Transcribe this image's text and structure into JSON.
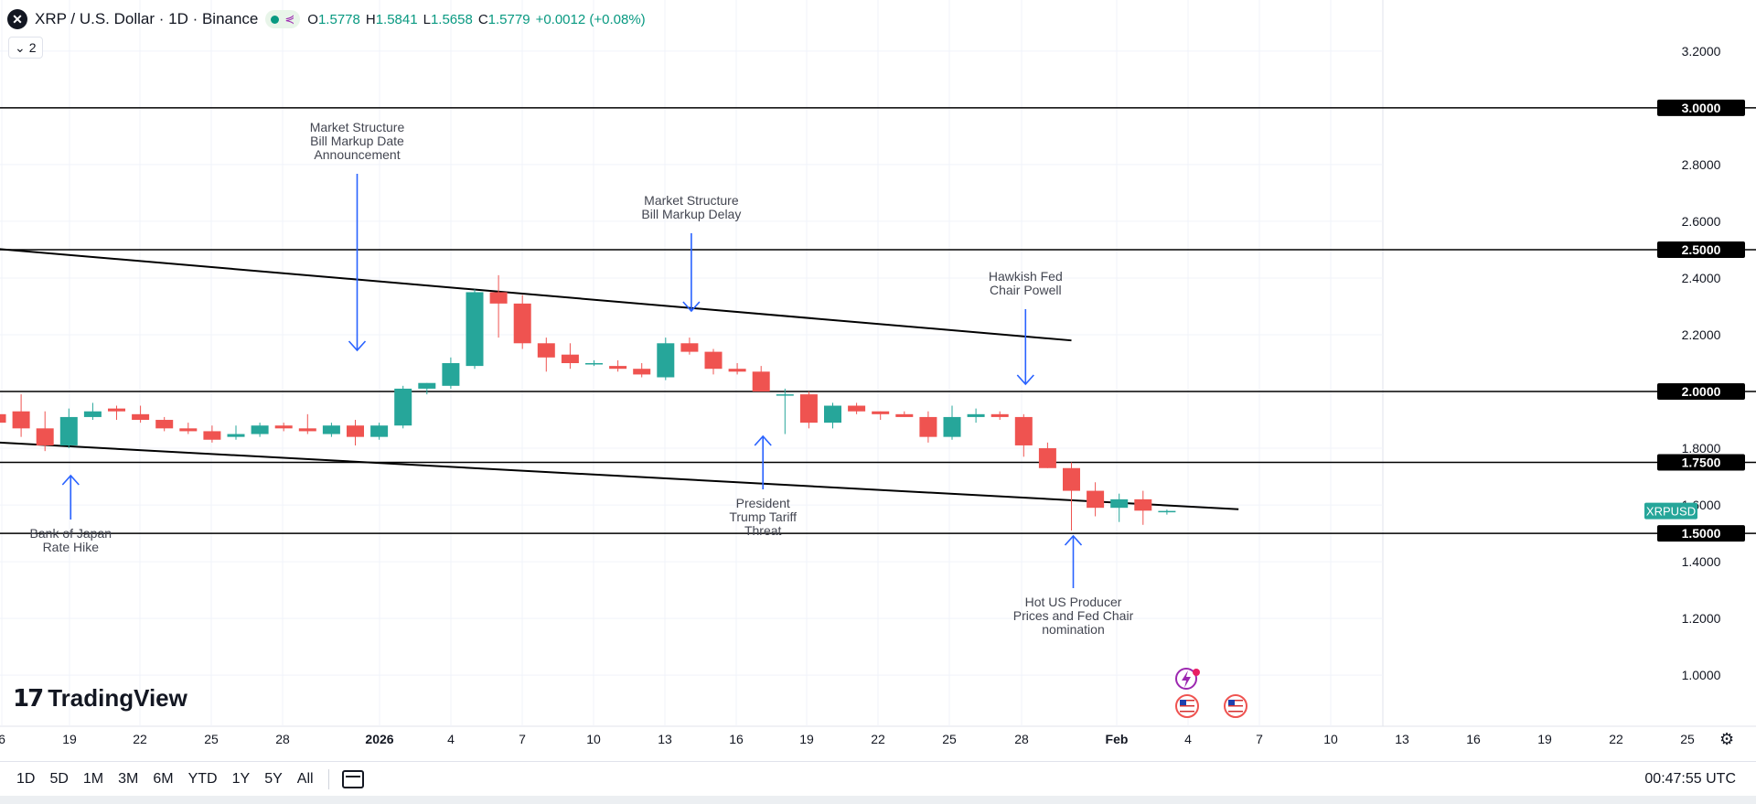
{
  "header": {
    "symbol_icon": "x-close-icon",
    "title": "XRP / U.S. Dollar · 1D · Binance",
    "ohlc": {
      "o_label": "O",
      "o": "1.5778",
      "h_label": "H",
      "h": "1.5841",
      "l_label": "L",
      "l": "1.5658",
      "c_label": "C",
      "c": "1.5779",
      "change": "+0.0012 (+0.08%)"
    },
    "indicator_toggle": "2"
  },
  "logo": {
    "text": "TradingView",
    "mark": "TV"
  },
  "bottom_bar": {
    "timeframes": [
      "1D",
      "5D",
      "1M",
      "3M",
      "6M",
      "YTD",
      "1Y",
      "5Y",
      "All"
    ],
    "clock": "00:47:55 UTC"
  },
  "colors": {
    "up": "#26a69a",
    "down": "#ef5350",
    "line": "#000000",
    "arrow": "#2962ff",
    "label_bg": "#000000",
    "price_tag": "#26a69a"
  },
  "chart_data": {
    "type": "candlestick",
    "symbol": "XRPUSD",
    "x_axis_labels": [
      "6",
      "19",
      "22",
      "25",
      "28",
      "2026",
      "4",
      "7",
      "10",
      "13",
      "16",
      "19",
      "22",
      "25",
      "28",
      "Feb",
      "4",
      "7",
      "10",
      "13",
      "16",
      "19",
      "22",
      "25"
    ],
    "y_ticks": [
      "3.2000",
      "2.8000",
      "2.6000",
      "2.4000",
      "2.2000",
      "1.8000",
      "1.6000",
      "1.4000",
      "1.2000",
      "1.0000"
    ],
    "ylim": [
      0.82,
      3.38
    ],
    "horizontal_levels": [
      "3.0000",
      "2.5000",
      "2.0000",
      "1.7500",
      "1.5000"
    ],
    "current_price_tag": "XRPUSD",
    "candles": [
      {
        "o": 1.92,
        "h": 1.95,
        "l": 1.88,
        "c": 1.89
      },
      {
        "o": 1.93,
        "h": 1.99,
        "l": 1.84,
        "c": 1.87
      },
      {
        "o": 1.87,
        "h": 1.93,
        "l": 1.79,
        "c": 1.81
      },
      {
        "o": 1.81,
        "h": 1.94,
        "l": 1.8,
        "c": 1.91
      },
      {
        "o": 1.91,
        "h": 1.96,
        "l": 1.9,
        "c": 1.93
      },
      {
        "o": 1.94,
        "h": 1.95,
        "l": 1.9,
        "c": 1.93
      },
      {
        "o": 1.92,
        "h": 1.95,
        "l": 1.89,
        "c": 1.9
      },
      {
        "o": 1.9,
        "h": 1.91,
        "l": 1.86,
        "c": 1.87
      },
      {
        "o": 1.87,
        "h": 1.89,
        "l": 1.85,
        "c": 1.86
      },
      {
        "o": 1.86,
        "h": 1.88,
        "l": 1.82,
        "c": 1.83
      },
      {
        "o": 1.84,
        "h": 1.88,
        "l": 1.83,
        "c": 1.85
      },
      {
        "o": 1.85,
        "h": 1.89,
        "l": 1.84,
        "c": 1.88
      },
      {
        "o": 1.88,
        "h": 1.89,
        "l": 1.86,
        "c": 1.87
      },
      {
        "o": 1.87,
        "h": 1.92,
        "l": 1.85,
        "c": 1.86
      },
      {
        "o": 1.85,
        "h": 1.89,
        "l": 1.84,
        "c": 1.88
      },
      {
        "o": 1.88,
        "h": 1.9,
        "l": 1.81,
        "c": 1.84
      },
      {
        "o": 1.84,
        "h": 1.89,
        "l": 1.83,
        "c": 1.88
      },
      {
        "o": 1.88,
        "h": 2.02,
        "l": 1.87,
        "c": 2.01
      },
      {
        "o": 2.01,
        "h": 2.03,
        "l": 1.99,
        "c": 2.03
      },
      {
        "o": 2.02,
        "h": 2.12,
        "l": 2.01,
        "c": 2.1
      },
      {
        "o": 2.09,
        "h": 2.36,
        "l": 2.08,
        "c": 2.35
      },
      {
        "o": 2.35,
        "h": 2.41,
        "l": 2.19,
        "c": 2.31
      },
      {
        "o": 2.31,
        "h": 2.34,
        "l": 2.15,
        "c": 2.17
      },
      {
        "o": 2.17,
        "h": 2.19,
        "l": 2.07,
        "c": 2.12
      },
      {
        "o": 2.13,
        "h": 2.17,
        "l": 2.08,
        "c": 2.1
      },
      {
        "o": 2.1,
        "h": 2.11,
        "l": 2.09,
        "c": 2.1
      },
      {
        "o": 2.09,
        "h": 2.11,
        "l": 2.07,
        "c": 2.08
      },
      {
        "o": 2.08,
        "h": 2.1,
        "l": 2.05,
        "c": 2.06
      },
      {
        "o": 2.05,
        "h": 2.19,
        "l": 2.04,
        "c": 2.17
      },
      {
        "o": 2.17,
        "h": 2.19,
        "l": 2.13,
        "c": 2.14
      },
      {
        "o": 2.14,
        "h": 2.15,
        "l": 2.06,
        "c": 2.08
      },
      {
        "o": 2.08,
        "h": 2.1,
        "l": 2.06,
        "c": 2.07
      },
      {
        "o": 2.07,
        "h": 2.09,
        "l": 2.0,
        "c": 2.0
      },
      {
        "o": 1.99,
        "h": 2.01,
        "l": 1.85,
        "c": 1.99
      },
      {
        "o": 1.99,
        "h": 2.0,
        "l": 1.87,
        "c": 1.89
      },
      {
        "o": 1.89,
        "h": 1.96,
        "l": 1.87,
        "c": 1.95
      },
      {
        "o": 1.95,
        "h": 1.96,
        "l": 1.92,
        "c": 1.93
      },
      {
        "o": 1.93,
        "h": 1.93,
        "l": 1.9,
        "c": 1.92
      },
      {
        "o": 1.92,
        "h": 1.93,
        "l": 1.91,
        "c": 1.91
      },
      {
        "o": 1.91,
        "h": 1.93,
        "l": 1.82,
        "c": 1.84
      },
      {
        "o": 1.84,
        "h": 1.95,
        "l": 1.83,
        "c": 1.91
      },
      {
        "o": 1.91,
        "h": 1.94,
        "l": 1.89,
        "c": 1.92
      },
      {
        "o": 1.92,
        "h": 1.93,
        "l": 1.9,
        "c": 1.91
      },
      {
        "o": 1.91,
        "h": 1.92,
        "l": 1.77,
        "c": 1.81
      },
      {
        "o": 1.8,
        "h": 1.82,
        "l": 1.73,
        "c": 1.73
      },
      {
        "o": 1.73,
        "h": 1.75,
        "l": 1.51,
        "c": 1.65
      },
      {
        "o": 1.65,
        "h": 1.68,
        "l": 1.56,
        "c": 1.59
      },
      {
        "o": 1.59,
        "h": 1.64,
        "l": 1.54,
        "c": 1.62
      },
      {
        "o": 1.62,
        "h": 1.65,
        "l": 1.53,
        "c": 1.58
      },
      {
        "o": 1.578,
        "h": 1.584,
        "l": 1.566,
        "c": 1.579
      }
    ],
    "trendlines": [
      {
        "start": {
          "bar": -1,
          "price": 2.51
        },
        "end": {
          "bar": 45,
          "price": 2.18
        }
      },
      {
        "start": {
          "bar": -1,
          "price": 1.825
        },
        "end": {
          "bar": 52,
          "price": 1.585
        }
      }
    ],
    "annotations": [
      {
        "text": "Bank of Japan Rate Hike",
        "lines": [
          "Bank of Japan",
          "Rate Hike"
        ],
        "direction": "up",
        "bar": 3
      },
      {
        "text": "Market Structure Bill Markup Date Announcement",
        "lines": [
          "Market Structure",
          "Bill Markup Date",
          "Announcement"
        ],
        "direction": "down",
        "bar": 15
      },
      {
        "text": "Market Structure Bill Markup Delay",
        "lines": [
          "Market Structure",
          "Bill Markup Delay"
        ],
        "direction": "down",
        "bar": 29
      },
      {
        "text": "President Trump Tariff Threat",
        "lines": [
          "President",
          "Trump Tariff",
          "Threat"
        ],
        "direction": "up",
        "bar": 32
      },
      {
        "text": "Hawkish Fed Chair Powell",
        "lines": [
          "Hawkish Fed",
          "Chair Powell"
        ],
        "direction": "down",
        "bar": 43
      },
      {
        "text": "Hot US Producer Prices and Fed Chair nomination",
        "lines": [
          "Hot US Producer",
          "Prices and Fed Chair",
          "nomination"
        ],
        "direction": "up",
        "bar": 45
      }
    ]
  }
}
